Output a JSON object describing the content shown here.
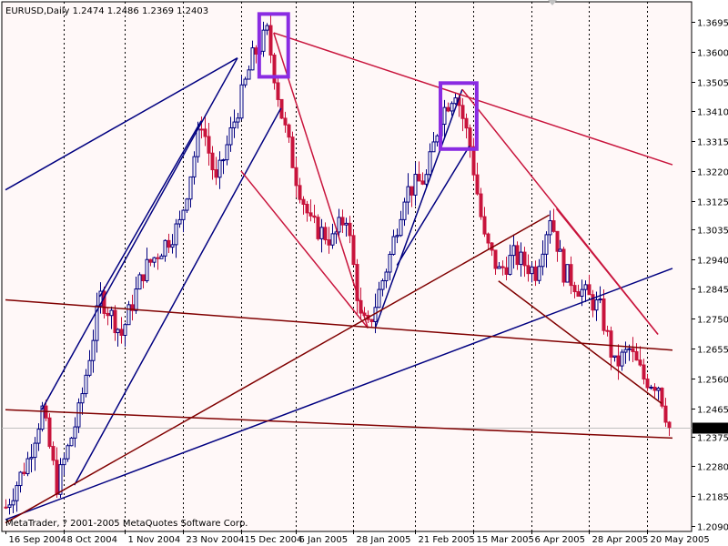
{
  "chart_data": {
    "type": "candlestick",
    "title": "EURUSD,Daily  1.2474 1.2486 1.2369 1.2403",
    "copyright": "MetaTrader, ? 2001-2005 MetaQuotes Software Corp.",
    "current_price": 1.2403,
    "current_price_label": "1.2403",
    "ylim": [
      1.209,
      1.374
    ],
    "grid": true,
    "y_ticks": [
      {
        "label": "1.3695",
        "value": 1.3695
      },
      {
        "label": "1.3600",
        "value": 1.36
      },
      {
        "label": "1.3505",
        "value": 1.3505
      },
      {
        "label": "1.3410",
        "value": 1.341
      },
      {
        "label": "1.3315",
        "value": 1.3315
      },
      {
        "label": "1.3220",
        "value": 1.322
      },
      {
        "label": "1.3125",
        "value": 1.3125
      },
      {
        "label": "1.3035",
        "value": 1.3035
      },
      {
        "label": "1.2940",
        "value": 1.294
      },
      {
        "label": "1.2845",
        "value": 1.2845
      },
      {
        "label": "1.2750",
        "value": 1.275
      },
      {
        "label": "1.2655",
        "value": 1.2655
      },
      {
        "label": "1.2560",
        "value": 1.256
      },
      {
        "label": "1.2465",
        "value": 1.2465
      },
      {
        "label": "1.2375",
        "value": 1.2375
      },
      {
        "label": "1.2280",
        "value": 1.228
      },
      {
        "label": "1.2185",
        "value": 1.2185
      },
      {
        "label": "1.2090",
        "value": 1.209
      }
    ],
    "x_ticks": [
      {
        "label": "16 Sep 2004",
        "bar": 0
      },
      {
        "label": "8 Oct 2004",
        "bar": 16
      },
      {
        "label": "1 Nov 2004",
        "bar": 33
      },
      {
        "label": "23 Nov 2004",
        "bar": 49
      },
      {
        "label": "15 Dec 2004",
        "bar": 65
      },
      {
        "label": "6 Jan 2005",
        "bar": 80
      },
      {
        "label": "28 Jan 2005",
        "bar": 96
      },
      {
        "label": "21 Feb 2005",
        "bar": 113
      },
      {
        "label": "15 Mar 2005",
        "bar": 129
      },
      {
        "label": "6 Apr 2005",
        "bar": 145
      },
      {
        "label": "28 Apr 2005",
        "bar": 161
      },
      {
        "label": "20 May 2005",
        "bar": 177
      }
    ],
    "bar_count": 184,
    "price_path": [
      {
        "bar": 0,
        "price": 1.215
      },
      {
        "bar": 6,
        "price": 1.23
      },
      {
        "bar": 10,
        "price": 1.246
      },
      {
        "bar": 14,
        "price": 1.222
      },
      {
        "bar": 20,
        "price": 1.245
      },
      {
        "bar": 26,
        "price": 1.282
      },
      {
        "bar": 32,
        "price": 1.27
      },
      {
        "bar": 38,
        "price": 1.29
      },
      {
        "bar": 48,
        "price": 1.305
      },
      {
        "bar": 54,
        "price": 1.338
      },
      {
        "bar": 58,
        "price": 1.318
      },
      {
        "bar": 64,
        "price": 1.342
      },
      {
        "bar": 68,
        "price": 1.358
      },
      {
        "bar": 72,
        "price": 1.366
      },
      {
        "bar": 76,
        "price": 1.34
      },
      {
        "bar": 80,
        "price": 1.32
      },
      {
        "bar": 84,
        "price": 1.305
      },
      {
        "bar": 90,
        "price": 1.3
      },
      {
        "bar": 94,
        "price": 1.308
      },
      {
        "bar": 98,
        "price": 1.275
      },
      {
        "bar": 100,
        "price": 1.272
      },
      {
        "bar": 106,
        "price": 1.295
      },
      {
        "bar": 110,
        "price": 1.315
      },
      {
        "bar": 116,
        "price": 1.32
      },
      {
        "bar": 120,
        "price": 1.34
      },
      {
        "bar": 124,
        "price": 1.348
      },
      {
        "bar": 128,
        "price": 1.33
      },
      {
        "bar": 132,
        "price": 1.3
      },
      {
        "bar": 136,
        "price": 1.29
      },
      {
        "bar": 140,
        "price": 1.295
      },
      {
        "bar": 146,
        "price": 1.29
      },
      {
        "bar": 150,
        "price": 1.308
      },
      {
        "bar": 154,
        "price": 1.29
      },
      {
        "bar": 158,
        "price": 1.285
      },
      {
        "bar": 164,
        "price": 1.278
      },
      {
        "bar": 168,
        "price": 1.26
      },
      {
        "bar": 172,
        "price": 1.265
      },
      {
        "bar": 176,
        "price": 1.256
      },
      {
        "bar": 180,
        "price": 1.254
      },
      {
        "bar": 183,
        "price": 1.2403
      }
    ],
    "trend_lines": [
      {
        "color": "#000080",
        "from": {
          "bar": 0,
          "price": 1.316
        },
        "to": {
          "bar": 64,
          "price": 1.358
        }
      },
      {
        "color": "#000080",
        "from": {
          "bar": 10,
          "price": 1.246
        },
        "to": {
          "bar": 64,
          "price": 1.358
        }
      },
      {
        "color": "#000080",
        "from": {
          "bar": 19,
          "price": 1.222
        },
        "to": {
          "bar": 76,
          "price": 1.342
        }
      },
      {
        "color": "#000080",
        "from": {
          "bar": 26,
          "price": 1.282
        },
        "to": {
          "bar": 54,
          "price": 1.338
        }
      },
      {
        "color": "#000080",
        "from": {
          "bar": 102,
          "price": 1.272
        },
        "to": {
          "bar": 126,
          "price": 1.348
        }
      },
      {
        "color": "#000080",
        "from": {
          "bar": 108,
          "price": 1.292
        },
        "to": {
          "bar": 128,
          "price": 1.33
        }
      },
      {
        "color": "#000080",
        "from": {
          "bar": 0,
          "price": 1.211
        },
        "to": {
          "bar": 184,
          "price": 1.291
        }
      },
      {
        "color": "#c8143c",
        "from": {
          "bar": 74,
          "price": 1.366
        },
        "to": {
          "bar": 184,
          "price": 1.324
        }
      },
      {
        "color": "#c8143c",
        "from": {
          "bar": 74,
          "price": 1.366
        },
        "to": {
          "bar": 100,
          "price": 1.272
        }
      },
      {
        "color": "#c8143c",
        "from": {
          "bar": 65,
          "price": 1.322
        },
        "to": {
          "bar": 100,
          "price": 1.272
        }
      },
      {
        "color": "#c8143c",
        "from": {
          "bar": 126,
          "price": 1.348
        },
        "to": {
          "bar": 180,
          "price": 1.27
        }
      },
      {
        "color": "#c8143c",
        "from": {
          "bar": 152,
          "price": 1.31
        },
        "to": {
          "bar": 180,
          "price": 1.27
        }
      },
      {
        "color": "#800000",
        "from": {
          "bar": 0,
          "price": 1.281
        },
        "to": {
          "bar": 184,
          "price": 1.265
        }
      },
      {
        "color": "#800000",
        "from": {
          "bar": 0,
          "price": 1.246
        },
        "to": {
          "bar": 184,
          "price": 1.237
        }
      },
      {
        "color": "#800000",
        "from": {
          "bar": 0,
          "price": 1.21
        },
        "to": {
          "bar": 150,
          "price": 1.308
        }
      },
      {
        "color": "#800000",
        "from": {
          "bar": 136,
          "price": 1.287
        },
        "to": {
          "bar": 181,
          "price": 1.248
        }
      }
    ],
    "highlight_boxes": [
      {
        "color": "#8a2be2",
        "from_bar": 70,
        "to_bar": 78,
        "top": 1.372,
        "bottom": 1.352
      },
      {
        "color": "#8a2be2",
        "from_bar": 120,
        "to_bar": 130,
        "top": 1.35,
        "bottom": 1.329
      }
    ],
    "colors": {
      "background": "#fff8f8",
      "grid": "#000000",
      "bull": "#000080",
      "bear": "#c8143c",
      "axis_bg": "#ffffff",
      "price_label_bg": "#000000",
      "price_label_fg": "#ffffff"
    }
  }
}
